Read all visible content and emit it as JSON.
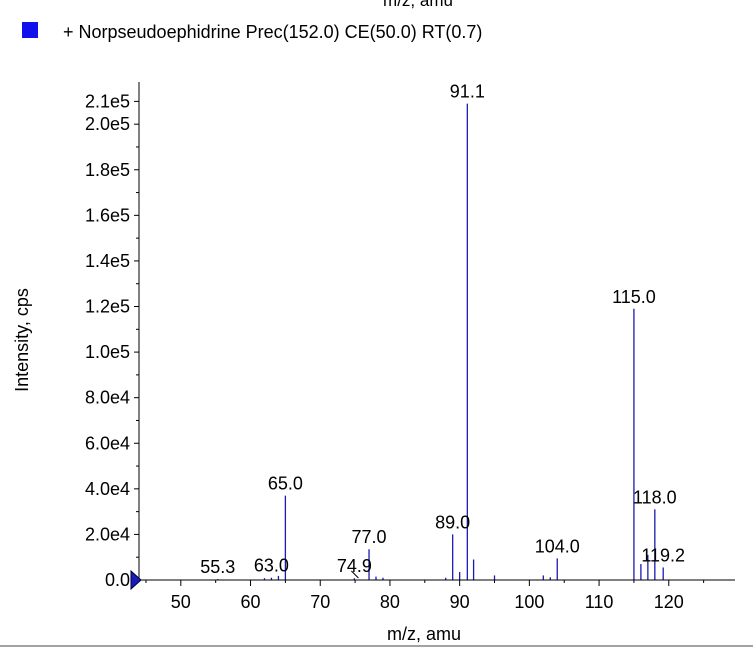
{
  "header": {
    "top_clipped_text": "m/z, amu",
    "legend_label": "+ Norpseudoephidrine Prec(152.0) CE(50.0) RT(0.7)",
    "legend_color": "#1010ee"
  },
  "chart_data": {
    "type": "bar",
    "title": "",
    "xlabel": "m/z, amu",
    "ylabel": "Intensity, cps",
    "xlim": [
      44,
      129.5
    ],
    "ylim": [
      0,
      215000
    ],
    "x_ticks": [
      50,
      60,
      70,
      80,
      90,
      100,
      110,
      120
    ],
    "x_tick_labels": [
      "50",
      "60",
      "70",
      "80",
      "90",
      "100",
      "110",
      "120"
    ],
    "y_ticks": [
      0,
      20000,
      40000,
      60000,
      80000,
      100000,
      120000,
      140000,
      160000,
      180000,
      200000,
      210000
    ],
    "y_tick_labels": [
      "0.0",
      "2.0e4",
      "4.0e4",
      "6.0e4",
      "8.0e4",
      "1.0e5",
      "1.2e5",
      "1.4e5",
      "1.6e5",
      "1.8e5",
      "2.0e5",
      "2.1e5"
    ],
    "series_color": "#1a1ab4",
    "series": [
      {
        "name": "+ Norpseudoephidrine Prec(152.0) CE(50.0) RT(0.7)",
        "x": [
          55.3,
          62.0,
          63.0,
          64.0,
          65.0,
          74.9,
          77.0,
          78.0,
          79.0,
          88.0,
          89.0,
          90.0,
          91.1,
          92.0,
          95.0,
          102.0,
          103.0,
          104.0,
          115.0,
          116.0,
          117.0,
          118.0,
          119.2
        ],
        "values": [
          400,
          800,
          1000,
          1800,
          37000,
          800,
          13500,
          1500,
          1000,
          1000,
          20000,
          3500,
          209000,
          9000,
          2000,
          2000,
          1200,
          9500,
          119000,
          7000,
          11000,
          31000,
          5500
        ]
      }
    ],
    "peak_labels": [
      {
        "x": 55.3,
        "text": "55.3"
      },
      {
        "x": 63.0,
        "text": "63.0"
      },
      {
        "x": 65.0,
        "text": "65.0"
      },
      {
        "x": 74.9,
        "text": "74.9"
      },
      {
        "x": 77.0,
        "text": "77.0"
      },
      {
        "x": 89.0,
        "text": "89.0"
      },
      {
        "x": 91.1,
        "text": "91.1"
      },
      {
        "x": 104.0,
        "text": "104.0"
      },
      {
        "x": 115.0,
        "text": "115.0"
      },
      {
        "x": 118.0,
        "text": "118.0"
      },
      {
        "x": 119.2,
        "text": "119.2"
      }
    ],
    "grid": false,
    "legend_position": "top-left"
  }
}
